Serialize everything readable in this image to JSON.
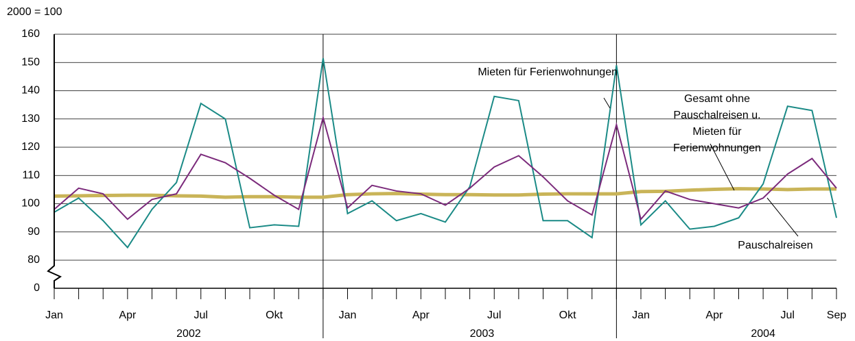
{
  "chart_data": {
    "type": "line",
    "unit_label": "2000 = 100",
    "categories": [
      "Jan",
      null,
      null,
      "Apr",
      null,
      null,
      "Jul",
      null,
      null,
      "Okt",
      null,
      null,
      "Jan",
      null,
      null,
      "Apr",
      null,
      null,
      "Jul",
      null,
      null,
      "Okt",
      null,
      null,
      "Jan",
      null,
      null,
      "Apr",
      null,
      null,
      "Jul",
      null,
      "Sep"
    ],
    "years": [
      "2002",
      "2003",
      "2004"
    ],
    "ylim": [
      0,
      160
    ],
    "yticks": [
      0,
      80,
      90,
      100,
      110,
      120,
      130,
      140,
      150,
      160
    ],
    "y_break": [
      0,
      80
    ],
    "grid": true,
    "series": [
      {
        "name": "Gesamt ohne\nPauschalreisen u.\nMieten für\nFerienwohnungen",
        "color": "#c9b458",
        "width": 5,
        "values": [
          102.7,
          102.8,
          102.9,
          103,
          103,
          102.8,
          102.7,
          102.3,
          102.5,
          102.5,
          102.3,
          102.3,
          103.2,
          103.5,
          103.6,
          103.4,
          103.2,
          103.2,
          103.1,
          103.1,
          103.4,
          103.5,
          103.5,
          103.5,
          104.3,
          104.4,
          104.8,
          105.1,
          105.3,
          105.2,
          105,
          105.2,
          105.2
        ]
      },
      {
        "name": "Mieten für Ferienwohnungen",
        "color": "#1a8a86",
        "width": 2,
        "values": [
          97,
          102,
          94,
          84.5,
          98,
          107.5,
          135.5,
          130,
          91.5,
          92.5,
          92,
          151.5,
          96.5,
          101,
          94,
          96.5,
          93.5,
          106,
          138,
          136.5,
          94,
          94,
          88,
          149,
          92.5,
          101,
          91,
          92,
          95,
          107,
          134.5,
          133,
          95
        ]
      },
      {
        "name": "Pauschalreisen",
        "color": "#7b2a7b",
        "width": 2,
        "values": [
          98,
          105.5,
          103.5,
          94.5,
          101.5,
          103.5,
          117.5,
          114.5,
          109,
          103,
          98,
          130.5,
          98.5,
          106.5,
          104.5,
          103.5,
          99.5,
          105.5,
          113,
          117,
          109.5,
          101,
          96,
          128,
          94.5,
          104.5,
          101.5,
          100,
          98.5,
          102,
          110.5,
          116,
          105.5
        ]
      }
    ]
  }
}
